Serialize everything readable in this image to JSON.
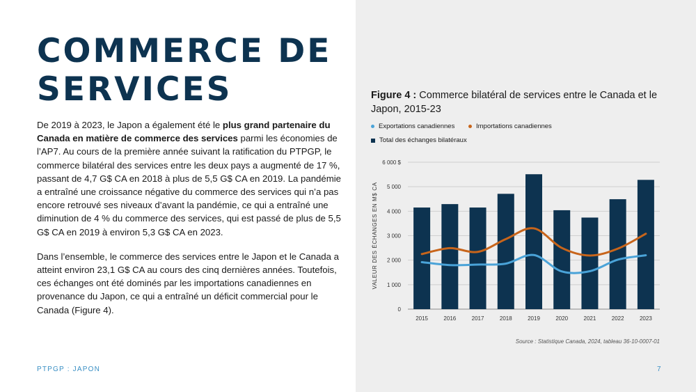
{
  "page": {
    "title_line1": "COMMERCE DE",
    "title_line2": "SERVICES",
    "paragraph1": {
      "part1": "De 2019 à 2023, le Japon a également été le ",
      "bold": "plus grand partenaire du Canada en matière de commerce des services",
      "part2": " parmi les économies de l’AP7. Au cours de la première année suivant la ratification du PTPGP, le commerce bilatéral des services entre les deux pays a augmenté de 17 %, passant de 4,7 G$ CA en 2018 à plus de 5,5 G$ CA en 2019. La pandémie a entraîné une croissance négative du commerce des services qui n’a pas encore retrouvé ses niveaux d’avant la pandémie, ce qui a entraîné une diminution de 4 % du commerce des services, qui est passé de plus de 5,5 G$ CA en 2019 à environ 5,3 G$ CA en 2023."
    },
    "paragraph2": "Dans l’ensemble, le commerce des services entre le Japon et le Canada a atteint environ 23,1 G$ CA au cours des cinq dernières années. Toutefois, ces échanges ont été dominés par les importations canadiennes en provenance du Japon, ce qui a entraîné un déficit commercial pour le Canada (Figure 4).",
    "footer_label": "PTPGP : JAPON",
    "page_number": "7"
  },
  "figure": {
    "label": "Figure 4 :",
    "caption": " Commerce bilatéral de services entre le Canada et le Japon, 2015-23",
    "source": "Source : Statistique Canada, 2024, tableau 36-10-0007-01"
  },
  "chart_data": {
    "type": "bar",
    "categories": [
      "2015",
      "2016",
      "2017",
      "2018",
      "2019",
      "2020",
      "2021",
      "2022",
      "2023"
    ],
    "series": [
      {
        "name": "Exportations canadiennes",
        "kind": "line",
        "color": "#4aa3d8",
        "values": [
          1920,
          1800,
          1820,
          1860,
          2210,
          1540,
          1550,
          2020,
          2200
        ]
      },
      {
        "name": "Importations canadiennes",
        "kind": "line",
        "color": "#c8651b",
        "values": [
          2250,
          2490,
          2340,
          2860,
          3300,
          2500,
          2190,
          2470,
          3080
        ]
      },
      {
        "name": "Total des échanges bilatéraux",
        "kind": "bar",
        "color": "#0d3350",
        "values": [
          4150,
          4290,
          4150,
          4710,
          5510,
          4040,
          3740,
          4490,
          5280
        ]
      }
    ],
    "ylabel": "VALEUR DES ÉCHANGES EN M$ CA",
    "xlabel": "",
    "ylim": [
      0,
      6000
    ],
    "yticks": [
      0,
      1000,
      2000,
      3000,
      4000,
      5000,
      6000
    ],
    "ytick_labels": [
      "0",
      "1 000",
      "2 000",
      "3 000",
      "4 000",
      "5 000",
      "6 000 $"
    ],
    "grid": true,
    "legend_position": "top-left"
  }
}
